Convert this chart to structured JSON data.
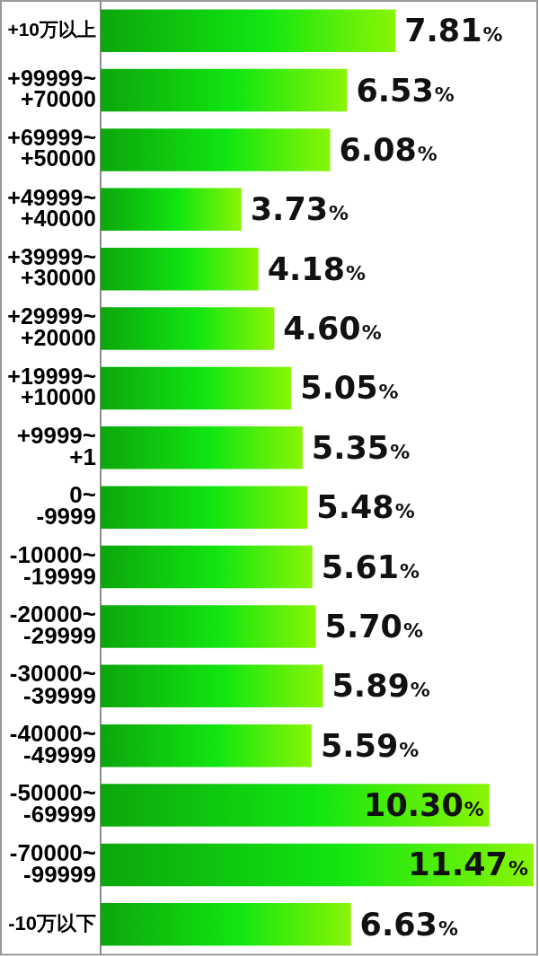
{
  "chart_data": {
    "type": "bar",
    "orientation": "horizontal",
    "categories": [
      "+10万以上",
      "+99999~\n+70000",
      "+69999~\n+50000",
      "+49999~\n+40000",
      "+39999~\n+30000",
      "+29999~\n+20000",
      "+19999~\n+10000",
      "+9999~\n+1",
      "0~\n-9999",
      "-10000~\n-19999",
      "-20000~\n-29999",
      "-30000~\n-39999",
      "-40000~\n-49999",
      "-50000~\n-69999",
      "-70000~\n-99999",
      "-10万以下"
    ],
    "values": [
      7.81,
      6.53,
      6.08,
      3.73,
      4.18,
      4.6,
      5.05,
      5.35,
      5.48,
      5.61,
      5.7,
      5.89,
      5.59,
      10.3,
      11.47,
      6.63
    ],
    "value_labels": [
      "7.81%",
      "6.53%",
      "6.08%",
      "3.73%",
      "4.18%",
      "4.60%",
      "5.05%",
      "5.35%",
      "5.48%",
      "5.61%",
      "5.70%",
      "5.89%",
      "5.59%",
      "10.30%",
      "11.47%",
      "6.63%"
    ],
    "color": "#11e611",
    "grid": false,
    "legend": false,
    "tick_labels": "y"
  }
}
